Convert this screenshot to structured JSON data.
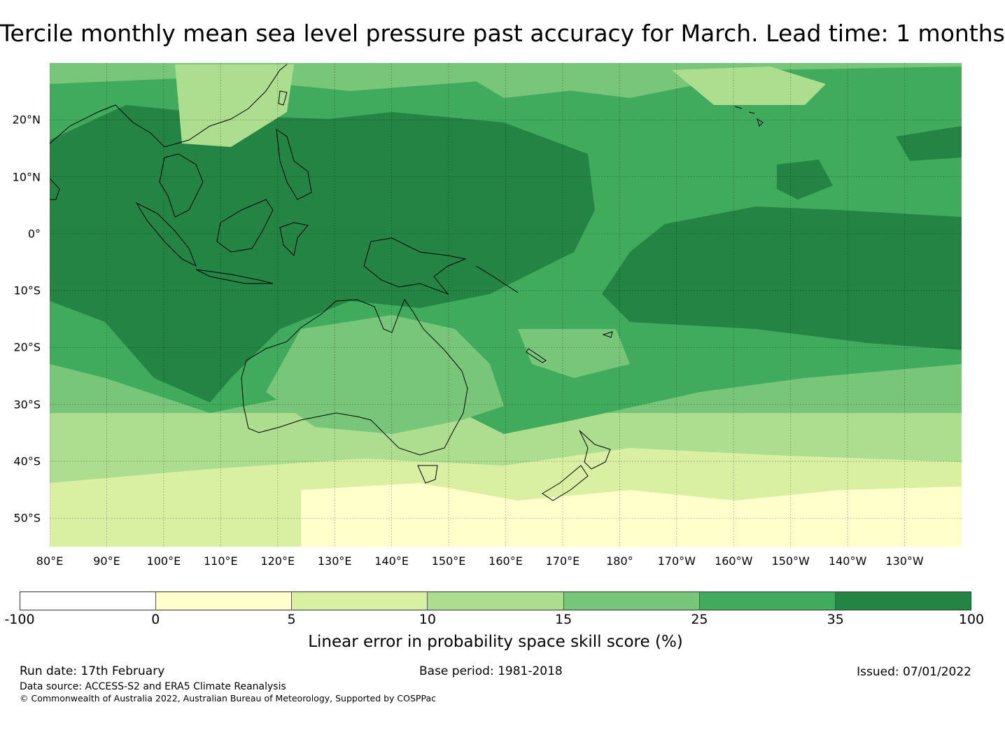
{
  "title": "Tercile monthly mean sea level pressure past accuracy for March. Lead time: 1 months",
  "map": {
    "region": "Western and South Pacific",
    "lon_labels": [
      "80°E",
      "90°E",
      "100°E",
      "110°E",
      "120°E",
      "130°E",
      "140°E",
      "150°E",
      "160°E",
      "170°E",
      "180°",
      "170°W",
      "160°W",
      "150°W",
      "140°W",
      "130°W"
    ],
    "lat_labels": [
      "20°N",
      "10°N",
      "0°",
      "10°S",
      "20°S",
      "30°S",
      "40°S",
      "50°S"
    ],
    "extent": {
      "lon_min": 80,
      "lon_max": 240,
      "lat_min": -55,
      "lat_max": 30
    }
  },
  "legend": {
    "ticks": [
      "-100",
      "0",
      "5",
      "10",
      "15",
      "25",
      "35",
      "100"
    ],
    "colors": [
      "#ffffff",
      "#ffffcc",
      "#d9f0a3",
      "#addd8e",
      "#78c679",
      "#41ab5d",
      "#238443"
    ],
    "label": "Linear error in probability space skill score (%)"
  },
  "footer": {
    "run_date": "Run date: 17th February",
    "base_period": "Base period: 1981-2018",
    "issued": "Issued: 07/01/2022",
    "data_source": "Data source: ACCESS-S2 and ERA5 Climate Reanalysis",
    "copyright": "© Commonwealth of Australia 2022, Australian Bureau of Meteorology, Supported by COSPPac"
  }
}
